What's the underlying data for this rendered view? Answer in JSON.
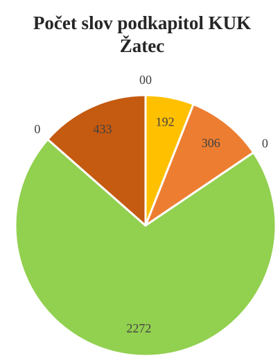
{
  "chart_data": {
    "type": "pie",
    "title": [
      "Počet slov podkapitol KUK",
      "Žatec"
    ],
    "values": [
      0,
      192,
      306,
      0,
      2272,
      0,
      433,
      0
    ],
    "colors": [
      "#a5a5a5",
      "#ffc000",
      "#ed7d31",
      "#5b9bd5",
      "#92d050",
      "#4472c4",
      "#c55a11",
      "#70ad47"
    ]
  }
}
